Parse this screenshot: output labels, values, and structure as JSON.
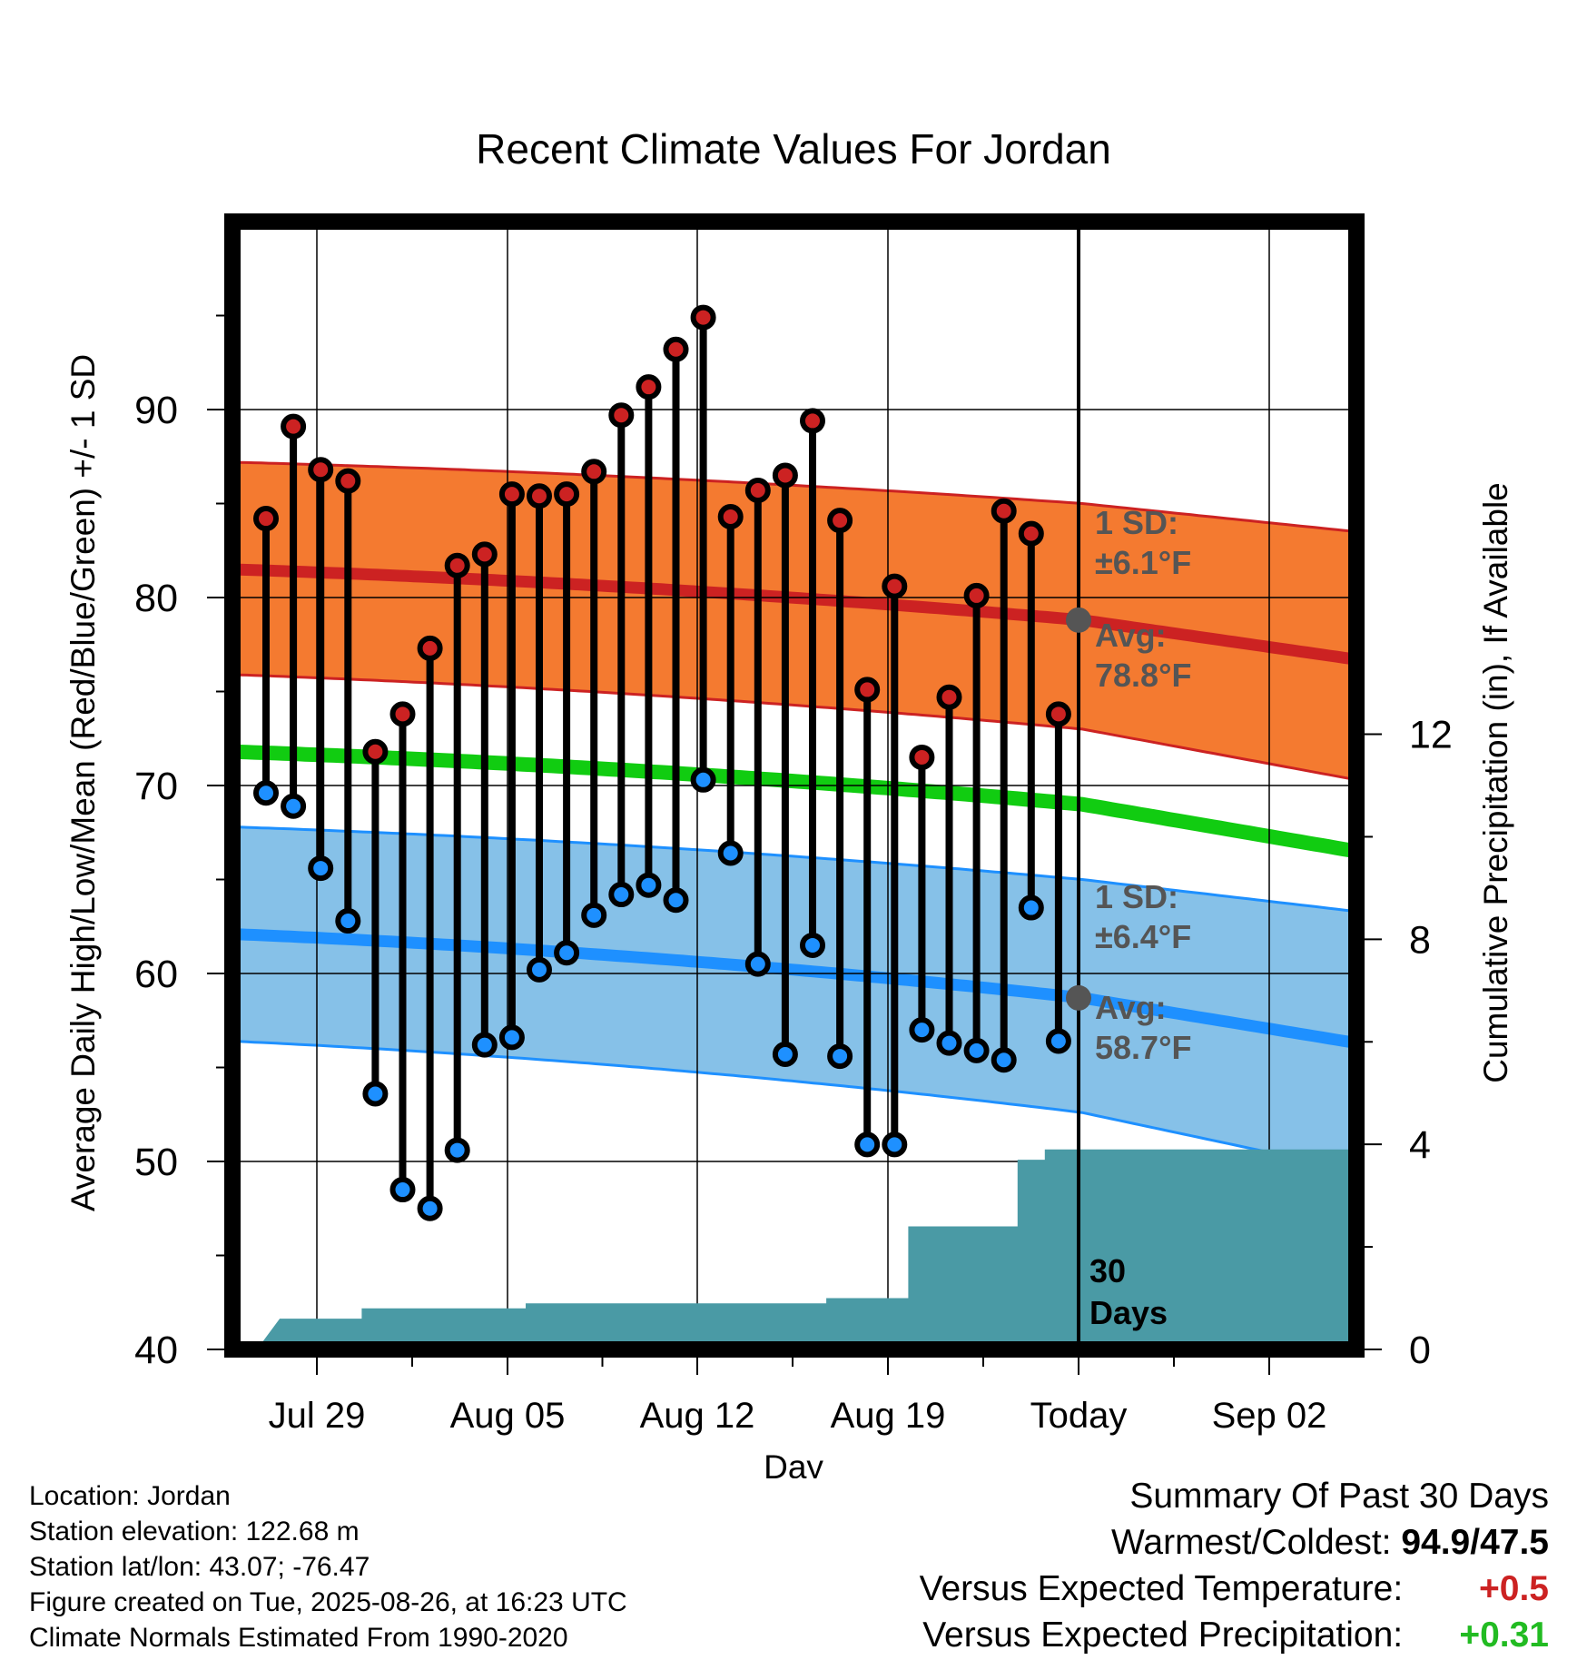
{
  "chart_data": {
    "type": "line",
    "title": "Recent Climate Values For Jordan",
    "xlabel": "Day",
    "ylabel": "Average Daily High/Low/Mean (Red/Blue/Green) +/- 1 SD",
    "ylabel_right": "Cumulative Precipitation (in), If Available",
    "x_ticks": [
      "Jul 29",
      "Aug 05",
      "Aug 12",
      "Aug 19",
      "Today",
      "Sep 02"
    ],
    "ylim": [
      40,
      100
    ],
    "y_ticks": [
      40,
      50,
      60,
      70,
      80,
      90
    ],
    "ylim_right": [
      0,
      22
    ],
    "y_ticks_right": [
      0,
      4,
      8,
      12
    ],
    "grid": true,
    "days": [
      "Jul 27",
      "Jul 28",
      "Jul 29",
      "Jul 30",
      "Jul 31",
      "Aug 01",
      "Aug 02",
      "Aug 03",
      "Aug 04",
      "Aug 05",
      "Aug 06",
      "Aug 07",
      "Aug 08",
      "Aug 09",
      "Aug 10",
      "Aug 11",
      "Aug 12",
      "Aug 13",
      "Aug 14",
      "Aug 15",
      "Aug 16",
      "Aug 17",
      "Aug 18",
      "Aug 19",
      "Aug 20",
      "Aug 21",
      "Aug 22",
      "Aug 23",
      "Aug 24",
      "Aug 25"
    ],
    "series": [
      {
        "name": "High",
        "color": "#cc2222",
        "values": [
          84.2,
          89.1,
          86.8,
          86.2,
          71.8,
          73.8,
          77.3,
          81.7,
          82.3,
          85.5,
          85.4,
          85.5,
          86.7,
          89.7,
          91.2,
          93.2,
          94.9,
          84.3,
          85.7,
          86.5,
          89.4,
          84.1,
          75.1,
          80.6,
          71.5,
          74.7,
          80.1,
          84.6,
          83.4,
          73.8
        ]
      },
      {
        "name": "Low",
        "color": "#1e90ff",
        "values": [
          69.6,
          68.9,
          65.6,
          62.8,
          53.6,
          48.5,
          47.5,
          50.6,
          56.2,
          56.6,
          60.2,
          61.1,
          63.1,
          64.2,
          64.7,
          63.9,
          70.3,
          66.4,
          60.5,
          55.7,
          61.5,
          55.6,
          50.9,
          50.9,
          57.0,
          56.3,
          55.9,
          55.4,
          63.5,
          56.4
        ]
      }
    ],
    "normals": {
      "high_avg": {
        "start": 81.5,
        "today": 78.8,
        "end": 76.7
      },
      "high_sd_upper": {
        "start": 87.2,
        "today": 85.0,
        "end": 83.5
      },
      "high_sd_lower": {
        "start": 75.9,
        "today": 73.0,
        "end": 70.3
      },
      "mean": {
        "start": 71.8,
        "today": 69.0,
        "end": 66.5
      },
      "low_avg": {
        "start": 62.1,
        "today": 58.7,
        "end": 56.3
      },
      "low_sd_upper": {
        "start": 67.8,
        "today": 65.0,
        "end": 63.3
      },
      "low_sd_lower": {
        "start": 56.4,
        "today": 52.6,
        "end": 49.5
      }
    },
    "precip_cumulative": [
      0.0,
      0.6,
      0.6,
      0.6,
      0.8,
      0.8,
      0.8,
      0.8,
      0.8,
      0.8,
      0.9,
      0.9,
      0.9,
      0.9,
      0.9,
      0.9,
      0.9,
      0.9,
      0.9,
      0.9,
      0.9,
      1.0,
      1.0,
      1.0,
      2.4,
      2.4,
      2.4,
      2.4,
      3.7,
      3.9,
      3.9
    ],
    "precip_color": "#4a9aa5",
    "colors": {
      "high_band": "#f47a30",
      "low_band": "#86c1e8",
      "mean_line": "#11cc11",
      "annotation": "#555555"
    },
    "annotations": {
      "high_sd_line1": "1 SD:",
      "high_sd_line2": "±6.1°F",
      "high_avg_line1": "Avg:",
      "high_avg_line2": "78.8°F",
      "low_sd_line1": "1 SD:",
      "low_sd_line2": "±6.4°F",
      "low_avg_line1": "Avg:",
      "low_avg_line2": "58.7°F",
      "days_line1": "30",
      "days_line2": "Days"
    }
  },
  "info": {
    "location": "Location: Jordan",
    "elevation": "Station elevation: 122.68 m",
    "latlon": "Station lat/lon: 43.07; -76.47",
    "created": "Figure created on Tue, 2025-08-26, at 16:23 UTC",
    "normals": "Climate Normals Estimated From 1990-2020"
  },
  "summary": {
    "title": "Summary Of Past 30 Days",
    "warmest_label": "Warmest/Coldest:",
    "warmest_value": "94.9/47.5",
    "temp_label": "Versus Expected Temperature:",
    "temp_value": "+0.5",
    "temp_color": "#cc2222",
    "precip_label": "Versus Expected Precipitation:",
    "precip_value": "+0.31",
    "precip_color": "#22bb22"
  }
}
